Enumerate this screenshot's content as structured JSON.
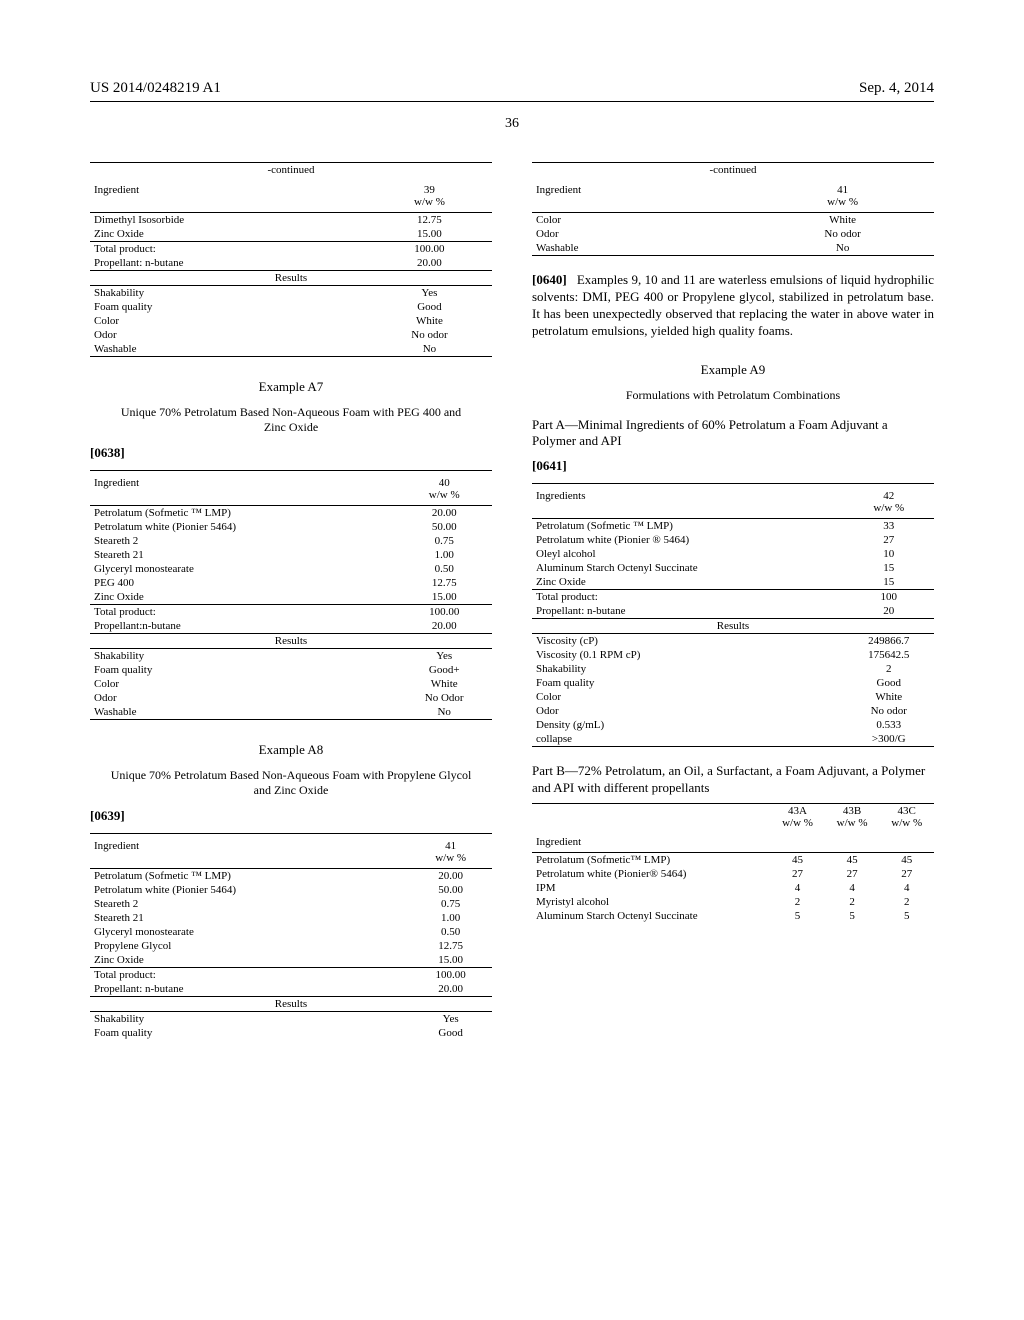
{
  "header": {
    "left": "US 2014/0248219 A1",
    "right": "Sep. 4, 2014",
    "page_number": "36"
  },
  "table39": {
    "continued": "-continued",
    "col1": "Ingredient",
    "col2a": "39",
    "col2b": "w/w %",
    "rows_a": [
      [
        "Dimethyl Isosorbide",
        "12.75"
      ],
      [
        "Zinc Oxide",
        "15.00"
      ]
    ],
    "rows_b": [
      [
        "Total product:",
        "100.00"
      ],
      [
        "Propellant: n-butane",
        "20.00"
      ]
    ],
    "results_label": "Results",
    "results": [
      [
        "Shakability",
        "Yes"
      ],
      [
        "Foam quality",
        "Good"
      ],
      [
        "Color",
        "White"
      ],
      [
        "Odor",
        "No odor"
      ],
      [
        "Washable",
        "No"
      ]
    ]
  },
  "exA7": {
    "title": "Example A7",
    "sub": "Unique 70% Petrolatum Based Non-Aqueous Foam with PEG 400 and Zinc Oxide",
    "num": "[0638]"
  },
  "table40": {
    "col1": "Ingredient",
    "col2a": "40",
    "col2b": "w/w %",
    "rows_a": [
      [
        "Petrolatum (Sofmetic ™ LMP)",
        "20.00"
      ],
      [
        "Petrolatum white (Pionier 5464)",
        "50.00"
      ],
      [
        "Steareth 2",
        "0.75"
      ],
      [
        "Steareth 21",
        "1.00"
      ],
      [
        "Glyceryl monostearate",
        "0.50"
      ],
      [
        "PEG 400",
        "12.75"
      ],
      [
        "Zinc Oxide",
        "15.00"
      ]
    ],
    "rows_b": [
      [
        "Total product:",
        "100.00"
      ],
      [
        "Propellant:n-butane",
        "20.00"
      ]
    ],
    "results_label": "Results",
    "results": [
      [
        "Shakability",
        "Yes"
      ],
      [
        "Foam quality",
        "Good+"
      ],
      [
        "Color",
        "White"
      ],
      [
        "Odor",
        "No Odor"
      ],
      [
        "Washable",
        "No"
      ]
    ]
  },
  "exA8": {
    "title": "Example A8",
    "sub": "Unique 70% Petrolatum Based Non-Aqueous Foam with Propylene Glycol and Zinc Oxide",
    "num": "[0639]"
  },
  "table41a": {
    "col1": "Ingredient",
    "col2a": "41",
    "col2b": "w/w %",
    "rows_a": [
      [
        "Petrolatum (Sofmetic ™ LMP)",
        "20.00"
      ],
      [
        "Petrolatum white (Pionier 5464)",
        "50.00"
      ],
      [
        "Steareth 2",
        "0.75"
      ],
      [
        "Steareth 21",
        "1.00"
      ],
      [
        "Glyceryl monostearate",
        "0.50"
      ],
      [
        "Propylene Glycol",
        "12.75"
      ],
      [
        "Zinc Oxide",
        "15.00"
      ]
    ],
    "rows_b": [
      [
        "Total product:",
        "100.00"
      ],
      [
        "Propellant: n-butane",
        "20.00"
      ]
    ],
    "results_label": "Results",
    "results": [
      [
        "Shakability",
        "Yes"
      ],
      [
        "Foam quality",
        "Good"
      ]
    ]
  },
  "table41b": {
    "continued": "-continued",
    "col1": "Ingredient",
    "col2a": "41",
    "col2b": "w/w %",
    "results": [
      [
        "Color",
        "White"
      ],
      [
        "Odor",
        "No odor"
      ],
      [
        "Washable",
        "No"
      ]
    ]
  },
  "para0640": {
    "num": "[0640]",
    "text": "Examples 9, 10 and 11 are waterless emulsions of liquid hydrophilic solvents: DMI, PEG 400 or Propylene glycol, stabilized in petrolatum base. It has been unexpectedly observed that replacing the water in above water in petrolatum emulsions, yielded high quality foams."
  },
  "exA9": {
    "title": "Example A9",
    "sub": "Formulations with Petrolatum Combinations"
  },
  "partA": {
    "label": "Part A—Minimal Ingredients of 60% Petrolatum a Foam Adjuvant a Polymer and API",
    "num": "[0641]"
  },
  "table42": {
    "col1": "Ingredients",
    "col2a": "42",
    "col2b": "w/w %",
    "rows_a": [
      [
        "Petrolatum (Sofmetic ™ LMP)",
        "33"
      ],
      [
        "Petrolatum white (Pionier ® 5464)",
        "27"
      ],
      [
        "Oleyl alcohol",
        "10"
      ],
      [
        "Aluminum Starch Octenyl Succinate",
        "15"
      ],
      [
        "Zinc Oxide",
        "15"
      ]
    ],
    "rows_b": [
      [
        "Total product:",
        "100"
      ],
      [
        "Propellant: n-butane",
        "20"
      ]
    ],
    "results_label": "Results",
    "results": [
      [
        "Viscosity (cP)",
        "249866.7"
      ],
      [
        "Viscosity (0.1 RPM cP)",
        "175642.5"
      ],
      [
        "Shakability",
        "2"
      ],
      [
        "Foam quality",
        "Good"
      ],
      [
        "Color",
        "White"
      ],
      [
        "Odor",
        "No odor"
      ],
      [
        "Density (g/mL)",
        "0.533"
      ],
      [
        "collapse",
        ">300/G"
      ]
    ]
  },
  "partB": {
    "label": "Part B—72% Petrolatum, an Oil, a Surfactant, a Foam Adjuvant, a Polymer and API with different propellants"
  },
  "table43": {
    "h1": "Ingredient",
    "cols": [
      {
        "a": "43A",
        "b": "w/w %"
      },
      {
        "a": "43B",
        "b": "w/w %"
      },
      {
        "a": "43C",
        "b": "w/w %"
      }
    ],
    "rows": [
      [
        "Petrolatum (Sofmetic™ LMP)",
        "45",
        "45",
        "45"
      ],
      [
        "Petrolatum white (Pionier® 5464)",
        "27",
        "27",
        "27"
      ],
      [
        "IPM",
        "4",
        "4",
        "4"
      ],
      [
        "Myristyl alcohol",
        "2",
        "2",
        "2"
      ],
      [
        "Aluminum Starch Octenyl Succinate",
        "5",
        "5",
        "5"
      ]
    ]
  }
}
